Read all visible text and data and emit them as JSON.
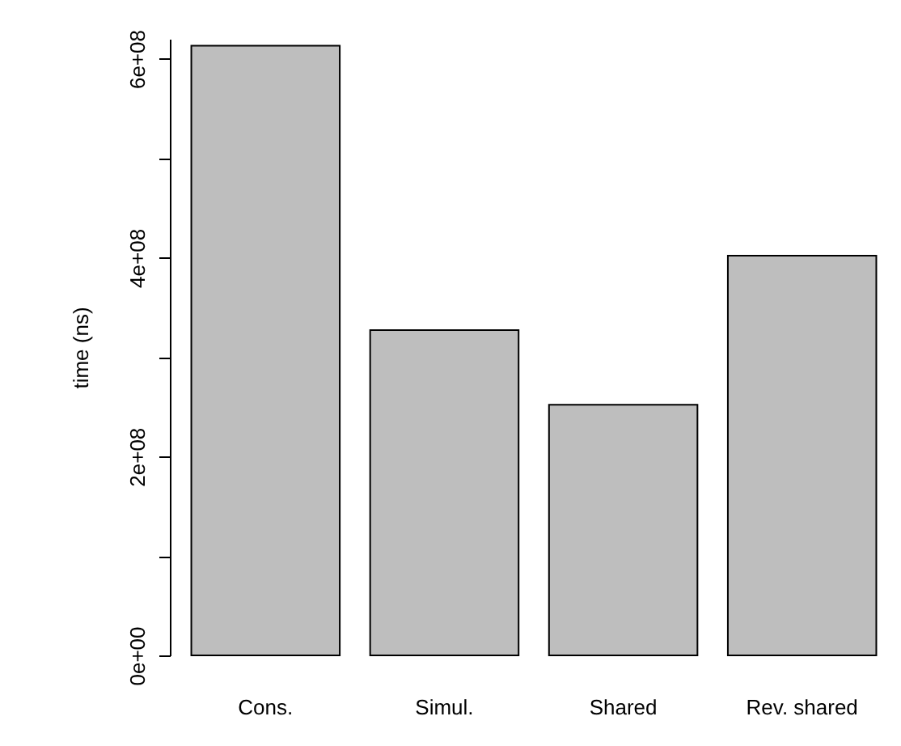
{
  "chart_data": {
    "type": "bar",
    "ylabel": "time (ns)",
    "categories": [
      "Cons.",
      "Simul.",
      "Shared",
      "Rev. shared"
    ],
    "values": [
      613000000.0,
      327000000.0,
      252000000.0,
      402000000.0
    ],
    "color": "#bebebe",
    "ylim": [
      0,
      620000000.0
    ],
    "yticks": [
      {
        "value": 0,
        "label": "0e+00"
      },
      {
        "value": 100000000.0,
        "label": null
      },
      {
        "value": 200000000.0,
        "label": "2e+08"
      },
      {
        "value": 300000000.0,
        "label": null
      },
      {
        "value": 400000000.0,
        "label": "4e+08"
      },
      {
        "value": 500000000.0,
        "label": null
      },
      {
        "value": 600000000.0,
        "label": "6e+08"
      }
    ],
    "grid": false
  }
}
